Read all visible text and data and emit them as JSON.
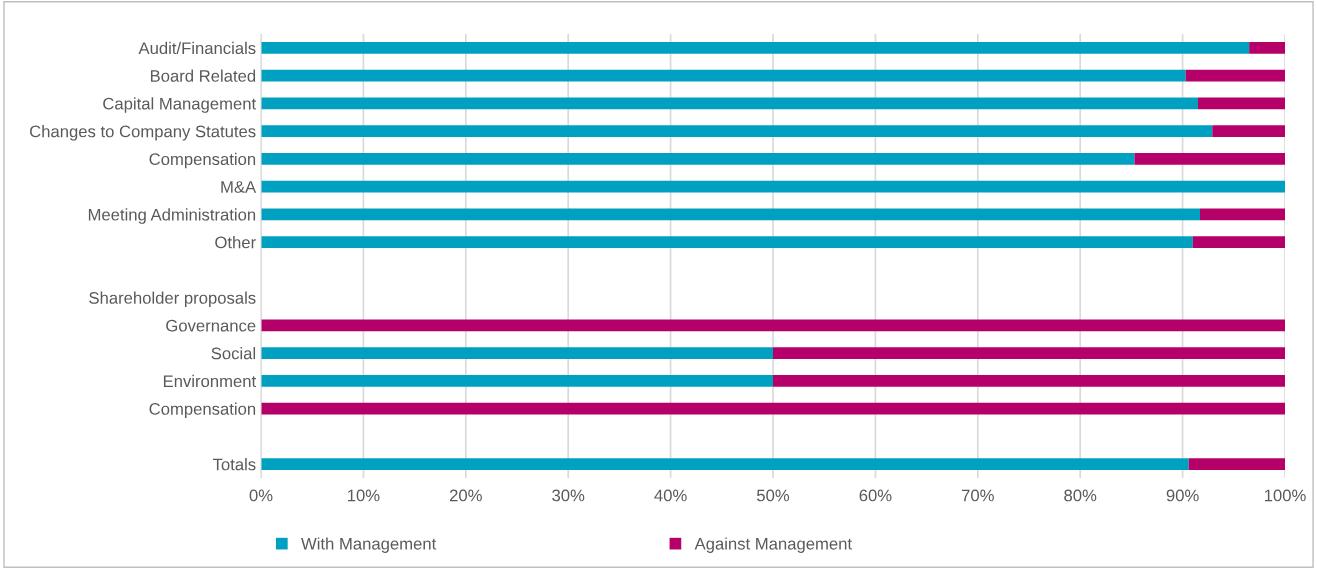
{
  "chart_data": {
    "type": "bar",
    "orientation": "horizontal",
    "stacked": true,
    "categories": [
      "Audit/Financials",
      "Board Related",
      "Capital Management",
      "Changes to Company Statutes",
      "Compensation",
      "M&A",
      "Meeting Administration",
      "Other",
      null,
      "Shareholder proposals",
      "Governance",
      "Social",
      "Environment",
      "Compensation",
      null,
      "Totals"
    ],
    "series": [
      {
        "name": "With Management",
        "color": "#00a0c0",
        "values": [
          96.5,
          90.3,
          91.5,
          92.9,
          85.3,
          100,
          91.7,
          91.0,
          null,
          null,
          0,
          50,
          50,
          0,
          null,
          90.6
        ]
      },
      {
        "name": "Against Management",
        "color": "#b5006a",
        "values": [
          3.5,
          9.7,
          8.5,
          7.1,
          14.7,
          0,
          8.3,
          9.0,
          null,
          null,
          100,
          50,
          50,
          100,
          null,
          9.4
        ]
      }
    ],
    "xlim": [
      0,
      100
    ],
    "xticks": [
      {
        "value": 0,
        "label": "0%"
      },
      {
        "value": 10,
        "label": "10%"
      },
      {
        "value": 20,
        "label": "20%"
      },
      {
        "value": 30,
        "label": "30%"
      },
      {
        "value": 40,
        "label": "40%"
      },
      {
        "value": 50,
        "label": "50%"
      },
      {
        "value": 60,
        "label": "60%"
      },
      {
        "value": 70,
        "label": "70%"
      },
      {
        "value": 80,
        "label": "80%"
      },
      {
        "value": 90,
        "label": "90%"
      },
      {
        "value": 100,
        "label": "100%"
      }
    ],
    "grid": "x",
    "legend": "bottom"
  }
}
